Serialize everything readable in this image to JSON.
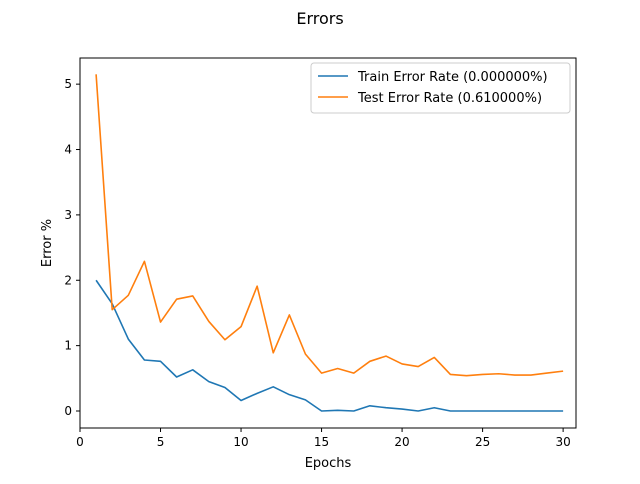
{
  "chart_data": {
    "type": "line",
    "title": "Errors",
    "xlabel": "Epochs",
    "ylabel": "Error %",
    "xlim": [
      0.0,
      30.8
    ],
    "ylim": [
      -0.26,
      5.4
    ],
    "xticks": [
      0,
      5,
      10,
      15,
      20,
      25,
      30
    ],
    "yticks": [
      0,
      1,
      2,
      3,
      4,
      5
    ],
    "grid": false,
    "legend_position": "top-right",
    "x": [
      1,
      2,
      3,
      4,
      5,
      6,
      7,
      8,
      9,
      10,
      11,
      12,
      13,
      14,
      15,
      16,
      17,
      18,
      19,
      20,
      21,
      22,
      23,
      24,
      25,
      26,
      27,
      28,
      29,
      30
    ],
    "series": [
      {
        "name": "Train Error Rate (0.000000%)",
        "color": "#1f77b4",
        "values": [
          2.0,
          1.64,
          1.1,
          0.78,
          0.76,
          0.52,
          0.63,
          0.45,
          0.36,
          0.16,
          0.27,
          0.37,
          0.25,
          0.17,
          0.0,
          0.01,
          0.0,
          0.08,
          0.05,
          0.03,
          0.0,
          0.05,
          0.0,
          0.0,
          0.0,
          0.0,
          0.0,
          0.0,
          0.0,
          0.0
        ]
      },
      {
        "name": "Test Error Rate (0.610000%)",
        "color": "#ff7f0e",
        "values": [
          5.15,
          1.55,
          1.77,
          2.29,
          1.36,
          1.71,
          1.76,
          1.37,
          1.09,
          1.29,
          1.91,
          0.89,
          1.47,
          0.87,
          0.58,
          0.65,
          0.58,
          0.76,
          0.84,
          0.72,
          0.68,
          0.82,
          0.56,
          0.54,
          0.56,
          0.57,
          0.55,
          0.55,
          0.58,
          0.61
        ]
      }
    ]
  }
}
